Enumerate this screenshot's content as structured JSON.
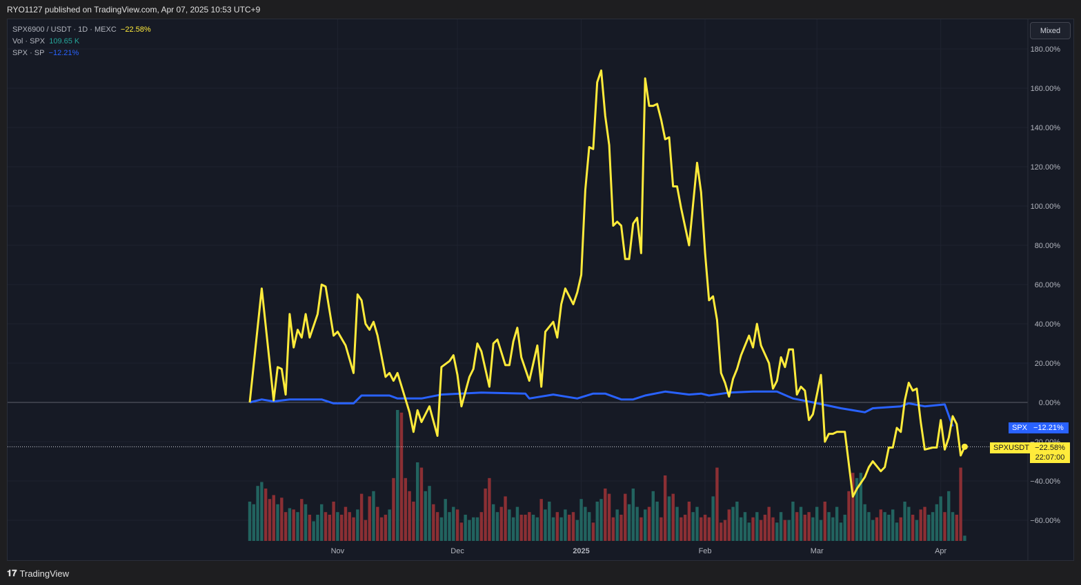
{
  "header": {
    "published": "RYO1127 published on TradingView.com, Apr 07, 2025 10:53 UTC+9"
  },
  "legend": {
    "main": {
      "label": "SPX6900 / USDT · 1D · MEXC",
      "value": "−22.58%",
      "color": "#ffeb3b"
    },
    "volume": {
      "label": "Vol · SPX",
      "value": "109.65 K",
      "color": "#26a69a"
    },
    "compare": {
      "label": "SPX · SP",
      "value": "−12.21%",
      "color": "#2962ff"
    }
  },
  "scale_mode_button": "Mixed",
  "price_tags": {
    "spx": {
      "symbol": "SPX",
      "value": "−12.21%"
    },
    "main": {
      "symbol": "SPXUSDT",
      "value": "−22.58%",
      "countdown": "22:07:00"
    }
  },
  "footer": {
    "brand": "TradingView"
  },
  "chart_data": {
    "type": "line",
    "y_axis": {
      "unit": "%",
      "ticks": [
        "180.00%",
        "160.00%",
        "140.00%",
        "120.00%",
        "100.00%",
        "80.00%",
        "60.00%",
        "40.00%",
        "20.00%",
        "0.00%",
        "-20.00%",
        "-40.00%",
        "-60.00%"
      ],
      "range": [
        -70,
        185
      ]
    },
    "x_axis": {
      "ticks": [
        "Nov",
        "Dec",
        "2025",
        "Feb",
        "Mar",
        "Apr"
      ],
      "range": [
        "2024-10-10",
        "2025-04-07"
      ]
    },
    "grid": true,
    "colors": {
      "up_volume": "#22635f",
      "down_volume": "#8b2f34"
    },
    "series": [
      {
        "name": "SPXUSDT",
        "color": "#ffeb3b",
        "points": [
          [
            "2024-10-10",
            0
          ],
          [
            "2024-10-13",
            58
          ],
          [
            "2024-10-16",
            1
          ],
          [
            "2024-10-17",
            18
          ],
          [
            "2024-10-18",
            17
          ],
          [
            "2024-10-19",
            4
          ],
          [
            "2024-10-20",
            45
          ],
          [
            "2024-10-21",
            28
          ],
          [
            "2024-10-22",
            37
          ],
          [
            "2024-10-23",
            33
          ],
          [
            "2024-10-24",
            45
          ],
          [
            "2024-10-25",
            33
          ],
          [
            "2024-10-27",
            45
          ],
          [
            "2024-10-28",
            60
          ],
          [
            "2024-10-29",
            59
          ],
          [
            "2024-10-31",
            34
          ],
          [
            "2024-11-01",
            36
          ],
          [
            "2024-11-03",
            29
          ],
          [
            "2024-11-05",
            15
          ],
          [
            "2024-11-06",
            55
          ],
          [
            "2024-11-07",
            52
          ],
          [
            "2024-11-08",
            40
          ],
          [
            "2024-11-09",
            37
          ],
          [
            "2024-11-10",
            41
          ],
          [
            "2024-11-11",
            34
          ],
          [
            "2024-11-13",
            13
          ],
          [
            "2024-11-14",
            15
          ],
          [
            "2024-11-15",
            11
          ],
          [
            "2024-11-16",
            15
          ],
          [
            "2024-11-19",
            -5
          ],
          [
            "2024-11-20",
            -15
          ],
          [
            "2024-11-21",
            -4
          ],
          [
            "2024-11-22",
            -10
          ],
          [
            "2024-11-24",
            -2
          ],
          [
            "2024-11-26",
            -17
          ],
          [
            "2024-11-27",
            18
          ],
          [
            "2024-11-29",
            21
          ],
          [
            "2024-11-30",
            24
          ],
          [
            "2024-12-01",
            14
          ],
          [
            "2024-12-02",
            -2
          ],
          [
            "2024-12-04",
            13
          ],
          [
            "2024-12-05",
            17
          ],
          [
            "2024-12-06",
            30
          ],
          [
            "2024-12-07",
            26
          ],
          [
            "2024-12-09",
            8
          ],
          [
            "2024-12-10",
            30
          ],
          [
            "2024-12-11",
            32
          ],
          [
            "2024-12-13",
            19
          ],
          [
            "2024-12-14",
            19
          ],
          [
            "2024-12-15",
            31
          ],
          [
            "2024-12-16",
            38
          ],
          [
            "2024-12-17",
            23
          ],
          [
            "2024-12-19",
            11
          ],
          [
            "2024-12-20",
            20
          ],
          [
            "2024-12-21",
            29
          ],
          [
            "2024-12-22",
            8
          ],
          [
            "2024-12-23",
            36
          ],
          [
            "2024-12-25",
            41
          ],
          [
            "2024-12-26",
            33
          ],
          [
            "2024-12-27",
            50
          ],
          [
            "2024-12-28",
            58
          ],
          [
            "2024-12-30",
            50
          ],
          [
            "2024-12-31",
            56
          ],
          [
            "2025-01-01",
            65
          ],
          [
            "2025-01-02",
            108
          ],
          [
            "2025-01-03",
            130
          ],
          [
            "2025-01-04",
            129
          ],
          [
            "2025-01-05",
            163
          ],
          [
            "2025-01-06",
            169
          ],
          [
            "2025-01-07",
            146
          ],
          [
            "2025-01-08",
            131
          ],
          [
            "2025-01-09",
            90
          ],
          [
            "2025-01-10",
            92
          ],
          [
            "2025-01-11",
            90
          ],
          [
            "2025-01-12",
            73
          ],
          [
            "2025-01-13",
            73
          ],
          [
            "2025-01-14",
            91
          ],
          [
            "2025-01-15",
            94
          ],
          [
            "2025-01-16",
            76
          ],
          [
            "2025-01-17",
            165
          ],
          [
            "2025-01-18",
            151
          ],
          [
            "2025-01-19",
            151
          ],
          [
            "2025-01-20",
            152
          ],
          [
            "2025-01-21",
            144
          ],
          [
            "2025-01-22",
            134
          ],
          [
            "2025-01-23",
            135
          ],
          [
            "2025-01-24",
            110
          ],
          [
            "2025-01-25",
            110
          ],
          [
            "2025-01-26",
            99
          ],
          [
            "2025-01-28",
            80
          ],
          [
            "2025-01-29",
            101
          ],
          [
            "2025-01-30",
            122
          ],
          [
            "2025-01-31",
            107
          ],
          [
            "2025-02-01",
            76
          ],
          [
            "2025-02-02",
            52
          ],
          [
            "2025-02-03",
            54
          ],
          [
            "2025-02-04",
            42
          ],
          [
            "2025-02-05",
            15
          ],
          [
            "2025-02-06",
            10
          ],
          [
            "2025-02-07",
            3
          ],
          [
            "2025-02-08",
            12
          ],
          [
            "2025-02-09",
            17
          ],
          [
            "2025-02-10",
            24
          ],
          [
            "2025-02-12",
            34
          ],
          [
            "2025-02-13",
            28
          ],
          [
            "2025-02-14",
            40
          ],
          [
            "2025-02-15",
            29
          ],
          [
            "2025-02-17",
            20
          ],
          [
            "2025-02-18",
            7
          ],
          [
            "2025-02-19",
            11
          ],
          [
            "2025-02-20",
            23
          ],
          [
            "2025-02-21",
            18
          ],
          [
            "2025-02-22",
            27
          ],
          [
            "2025-02-23",
            27
          ],
          [
            "2025-02-24",
            4
          ],
          [
            "2025-02-25",
            8
          ],
          [
            "2025-02-26",
            6
          ],
          [
            "2025-02-27",
            -9
          ],
          [
            "2025-02-28",
            -6
          ],
          [
            "2025-03-02",
            14
          ],
          [
            "2025-03-03",
            -20
          ],
          [
            "2025-03-04",
            -16
          ],
          [
            "2025-03-05",
            -16
          ],
          [
            "2025-03-06",
            -15
          ],
          [
            "2025-03-08",
            -15
          ],
          [
            "2025-03-10",
            -48
          ],
          [
            "2025-03-11",
            -44
          ],
          [
            "2025-03-12",
            -41
          ],
          [
            "2025-03-13",
            -38
          ],
          [
            "2025-03-14",
            -33
          ],
          [
            "2025-03-15",
            -30
          ],
          [
            "2025-03-17",
            -35
          ],
          [
            "2025-03-18",
            -33
          ],
          [
            "2025-03-19",
            -23
          ],
          [
            "2025-03-20",
            -23
          ],
          [
            "2025-03-21",
            -13
          ],
          [
            "2025-03-22",
            -15
          ],
          [
            "2025-03-23",
            1
          ],
          [
            "2025-03-24",
            10
          ],
          [
            "2025-03-25",
            6
          ],
          [
            "2025-03-26",
            7
          ],
          [
            "2025-03-27",
            -10
          ],
          [
            "2025-03-28",
            -24
          ],
          [
            "2025-03-30",
            -23
          ],
          [
            "2025-03-31",
            -23
          ],
          [
            "2025-04-01",
            -9
          ],
          [
            "2025-04-02",
            -24
          ],
          [
            "2025-04-03",
            -18
          ],
          [
            "2025-04-04",
            -7
          ],
          [
            "2025-04-05",
            -11
          ],
          [
            "2025-04-06",
            -27
          ],
          [
            "2025-04-07",
            -22.58
          ]
        ]
      },
      {
        "name": "SPX",
        "color": "#2962ff",
        "points": [
          [
            "2024-10-10",
            0
          ],
          [
            "2024-10-13",
            1.5
          ],
          [
            "2024-10-16",
            0.5
          ],
          [
            "2024-10-20",
            1.5
          ],
          [
            "2024-10-28",
            1.5
          ],
          [
            "2024-10-31",
            -0.5
          ],
          [
            "2024-11-05",
            -0.5
          ],
          [
            "2024-11-07",
            3.5
          ],
          [
            "2024-11-14",
            3.5
          ],
          [
            "2024-11-16",
            2
          ],
          [
            "2024-11-22",
            2
          ],
          [
            "2024-11-27",
            4
          ],
          [
            "2024-12-07",
            5
          ],
          [
            "2024-12-18",
            4.5
          ],
          [
            "2024-12-19",
            2
          ],
          [
            "2024-12-25",
            4
          ],
          [
            "2024-12-31",
            2
          ],
          [
            "2025-01-04",
            4.5
          ],
          [
            "2025-01-07",
            4.5
          ],
          [
            "2025-01-11",
            1.5
          ],
          [
            "2025-01-14",
            1.5
          ],
          [
            "2025-01-17",
            3.5
          ],
          [
            "2025-01-22",
            5.5
          ],
          [
            "2025-01-28",
            4
          ],
          [
            "2025-01-31",
            4.5
          ],
          [
            "2025-02-02",
            3.5
          ],
          [
            "2025-02-07",
            5
          ],
          [
            "2025-02-13",
            5.5
          ],
          [
            "2025-02-19",
            5.5
          ],
          [
            "2025-02-23",
            2
          ],
          [
            "2025-02-28",
            0
          ],
          [
            "2025-03-07",
            -3
          ],
          [
            "2025-03-10",
            -4
          ],
          [
            "2025-03-13",
            -5
          ],
          [
            "2025-03-15",
            -3
          ],
          [
            "2025-03-22",
            -2
          ],
          [
            "2025-03-24",
            -0.5
          ],
          [
            "2025-03-28",
            -2
          ],
          [
            "2025-04-02",
            -1
          ],
          [
            "2025-04-04",
            -12.21
          ]
        ]
      }
    ],
    "volume_relative": [
      30,
      28,
      42,
      45,
      40,
      32,
      35,
      28,
      33,
      22,
      25,
      24,
      22,
      32,
      28,
      20,
      15,
      20,
      28,
      22,
      20,
      30,
      22,
      20,
      26,
      22,
      18,
      24,
      36,
      16,
      34,
      38,
      26,
      18,
      20,
      24,
      48,
      100,
      98,
      48,
      38,
      30,
      60,
      56,
      38,
      42,
      28,
      22,
      18,
      32,
      22,
      26,
      24,
      14,
      20,
      16,
      18,
      18,
      22,
      40,
      48,
      28,
      22,
      26,
      34,
      24,
      18,
      26,
      20,
      20,
      22,
      20,
      18,
      32,
      24,
      30,
      18,
      22,
      18,
      24,
      20,
      22,
      16,
      32,
      26,
      22,
      14,
      30,
      32,
      40,
      36,
      18,
      24,
      20,
      36,
      28,
      40,
      26,
      18,
      24,
      26,
      38,
      30,
      18,
      50,
      34,
      36,
      26,
      18,
      20,
      30,
      22,
      26,
      18,
      20,
      18,
      34,
      56,
      14,
      16,
      24,
      26,
      30,
      18,
      22,
      14,
      18,
      22,
      16,
      20,
      26,
      18,
      14,
      22,
      16,
      16,
      30,
      22,
      26,
      20,
      22,
      18,
      26,
      16,
      30,
      22,
      18,
      26,
      14,
      20,
      38,
      52,
      48,
      52,
      28,
      22,
      16,
      18,
      24,
      22,
      20,
      24,
      14,
      18,
      30,
      26,
      20,
      16,
      24,
      26,
      20,
      22,
      28,
      34,
      22,
      38,
      22,
      20,
      56,
      4
    ]
  }
}
